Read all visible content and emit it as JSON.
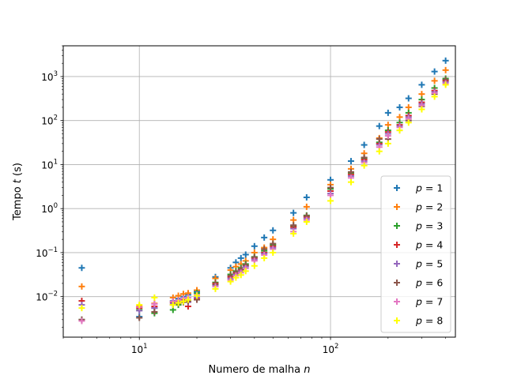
{
  "chart_data": {
    "type": "scatter",
    "title": "",
    "xlabel": "Numero de malha n",
    "ylabel": "Tempo t (s)",
    "xlabel_parts": {
      "text": "Numero de malha ",
      "var": "n"
    },
    "ylabel_parts": {
      "prefix": "Tempo ",
      "var": "t",
      "suffix": " (s)"
    },
    "x_scale": "log",
    "y_scale": "log",
    "xlim": [
      4,
      450
    ],
    "ylim": [
      0.0012,
      5000
    ],
    "x_ticks": [
      {
        "value": 10,
        "base": "10",
        "exp": "1"
      },
      {
        "value": 100,
        "base": "10",
        "exp": "2"
      }
    ],
    "y_ticks": [
      {
        "value": 0.01,
        "base": "10",
        "exp": "−2"
      },
      {
        "value": 0.1,
        "base": "10",
        "exp": "−1"
      },
      {
        "value": 1,
        "base": "10",
        "exp": "0"
      },
      {
        "value": 10,
        "base": "10",
        "exp": "1"
      },
      {
        "value": 100,
        "base": "10",
        "exp": "2"
      },
      {
        "value": 1000,
        "base": "10",
        "exp": "3"
      }
    ],
    "grid": true,
    "legend_position": "lower-right",
    "marker": "+",
    "x": [
      5,
      10,
      12,
      15,
      16,
      17,
      18,
      20,
      25,
      30,
      32,
      34,
      36,
      40,
      45,
      50,
      64,
      75,
      100,
      128,
      150,
      180,
      200,
      230,
      256,
      300,
      350,
      400
    ],
    "series": [
      {
        "name": "p = 1",
        "label_var": "p",
        "label_value": "1",
        "color": "#1f77b4",
        "values": [
          0.045,
          0.0035,
          0.0055,
          0.008,
          0.009,
          0.01,
          0.011,
          0.013,
          0.028,
          0.045,
          0.06,
          0.075,
          0.09,
          0.14,
          0.22,
          0.32,
          0.8,
          1.8,
          4.5,
          12,
          28,
          75,
          150,
          200,
          320,
          650,
          1300,
          2300
        ]
      },
      {
        "name": "p = 2",
        "label_var": "p",
        "label_value": "2",
        "color": "#ff7f0e",
        "values": [
          0.017,
          0.006,
          0.007,
          0.0095,
          0.0105,
          0.0115,
          0.012,
          0.014,
          0.026,
          0.04,
          0.048,
          0.055,
          0.065,
          0.1,
          0.13,
          0.2,
          0.55,
          1.1,
          3.5,
          8,
          18,
          40,
          80,
          120,
          200,
          400,
          800,
          1400
        ]
      },
      {
        "name": "p = 3",
        "label_var": "p",
        "label_value": "3",
        "color": "#2ca02c",
        "values": [
          0.003,
          0.005,
          0.0042,
          0.005,
          0.0065,
          0.0075,
          0.0085,
          0.012,
          0.021,
          0.032,
          0.038,
          0.045,
          0.055,
          0.08,
          0.11,
          0.15,
          0.4,
          0.7,
          2.8,
          6.5,
          14,
          32,
          60,
          90,
          150,
          300,
          550,
          900
        ]
      },
      {
        "name": "p = 4",
        "label_var": "p",
        "label_value": "4",
        "color": "#d62728",
        "values": [
          0.008,
          0.0055,
          0.006,
          0.0075,
          0.008,
          0.0085,
          0.006,
          0.009,
          0.02,
          0.028,
          0.034,
          0.04,
          0.05,
          0.075,
          0.1,
          0.14,
          0.38,
          0.65,
          2.5,
          6,
          13,
          30,
          55,
          80,
          130,
          260,
          480,
          800
        ]
      },
      {
        "name": "p = 5",
        "label_var": "p",
        "label_value": "5",
        "color": "#9467bd",
        "values": [
          0.0065,
          0.0048,
          0.0055,
          0.007,
          0.0075,
          0.008,
          0.0075,
          0.0095,
          0.018,
          0.026,
          0.032,
          0.038,
          0.048,
          0.07,
          0.095,
          0.13,
          0.35,
          0.6,
          2.2,
          5.5,
          12,
          28,
          50,
          75,
          120,
          240,
          450,
          750
        ]
      },
      {
        "name": "p = 6",
        "label_var": "p",
        "label_value": "6",
        "color": "#8c564b",
        "values": [
          0.003,
          0.0033,
          0.0045,
          0.0065,
          0.007,
          0.0075,
          0.0078,
          0.0085,
          0.019,
          0.03,
          0.036,
          0.042,
          0.052,
          0.078,
          0.12,
          0.16,
          0.42,
          0.68,
          3,
          6.8,
          14.5,
          38,
          38,
          60,
          100,
          210,
          400,
          850
        ]
      },
      {
        "name": "p = 7",
        "label_var": "p",
        "label_value": "7",
        "color": "#e377c2",
        "values": [
          0.0028,
          0.0058,
          0.0068,
          0.0078,
          0.0082,
          0.009,
          0.0095,
          0.011,
          0.017,
          0.024,
          0.03,
          0.035,
          0.044,
          0.065,
          0.088,
          0.12,
          0.3,
          0.55,
          2,
          5,
          11,
          25,
          45,
          70,
          110,
          220,
          420,
          700
        ]
      },
      {
        "name": "p = 8",
        "label_var": "p",
        "label_value": "8",
        "color": "#ffff00",
        "values": [
          0.0055,
          0.0065,
          0.0095,
          0.0065,
          0.0072,
          0.0078,
          0.0085,
          0.0105,
          0.015,
          0.022,
          0.027,
          0.031,
          0.038,
          0.05,
          0.075,
          0.1,
          0.27,
          0.5,
          1.5,
          4,
          9.5,
          20,
          30,
          60,
          90,
          180,
          350,
          650
        ]
      }
    ]
  }
}
